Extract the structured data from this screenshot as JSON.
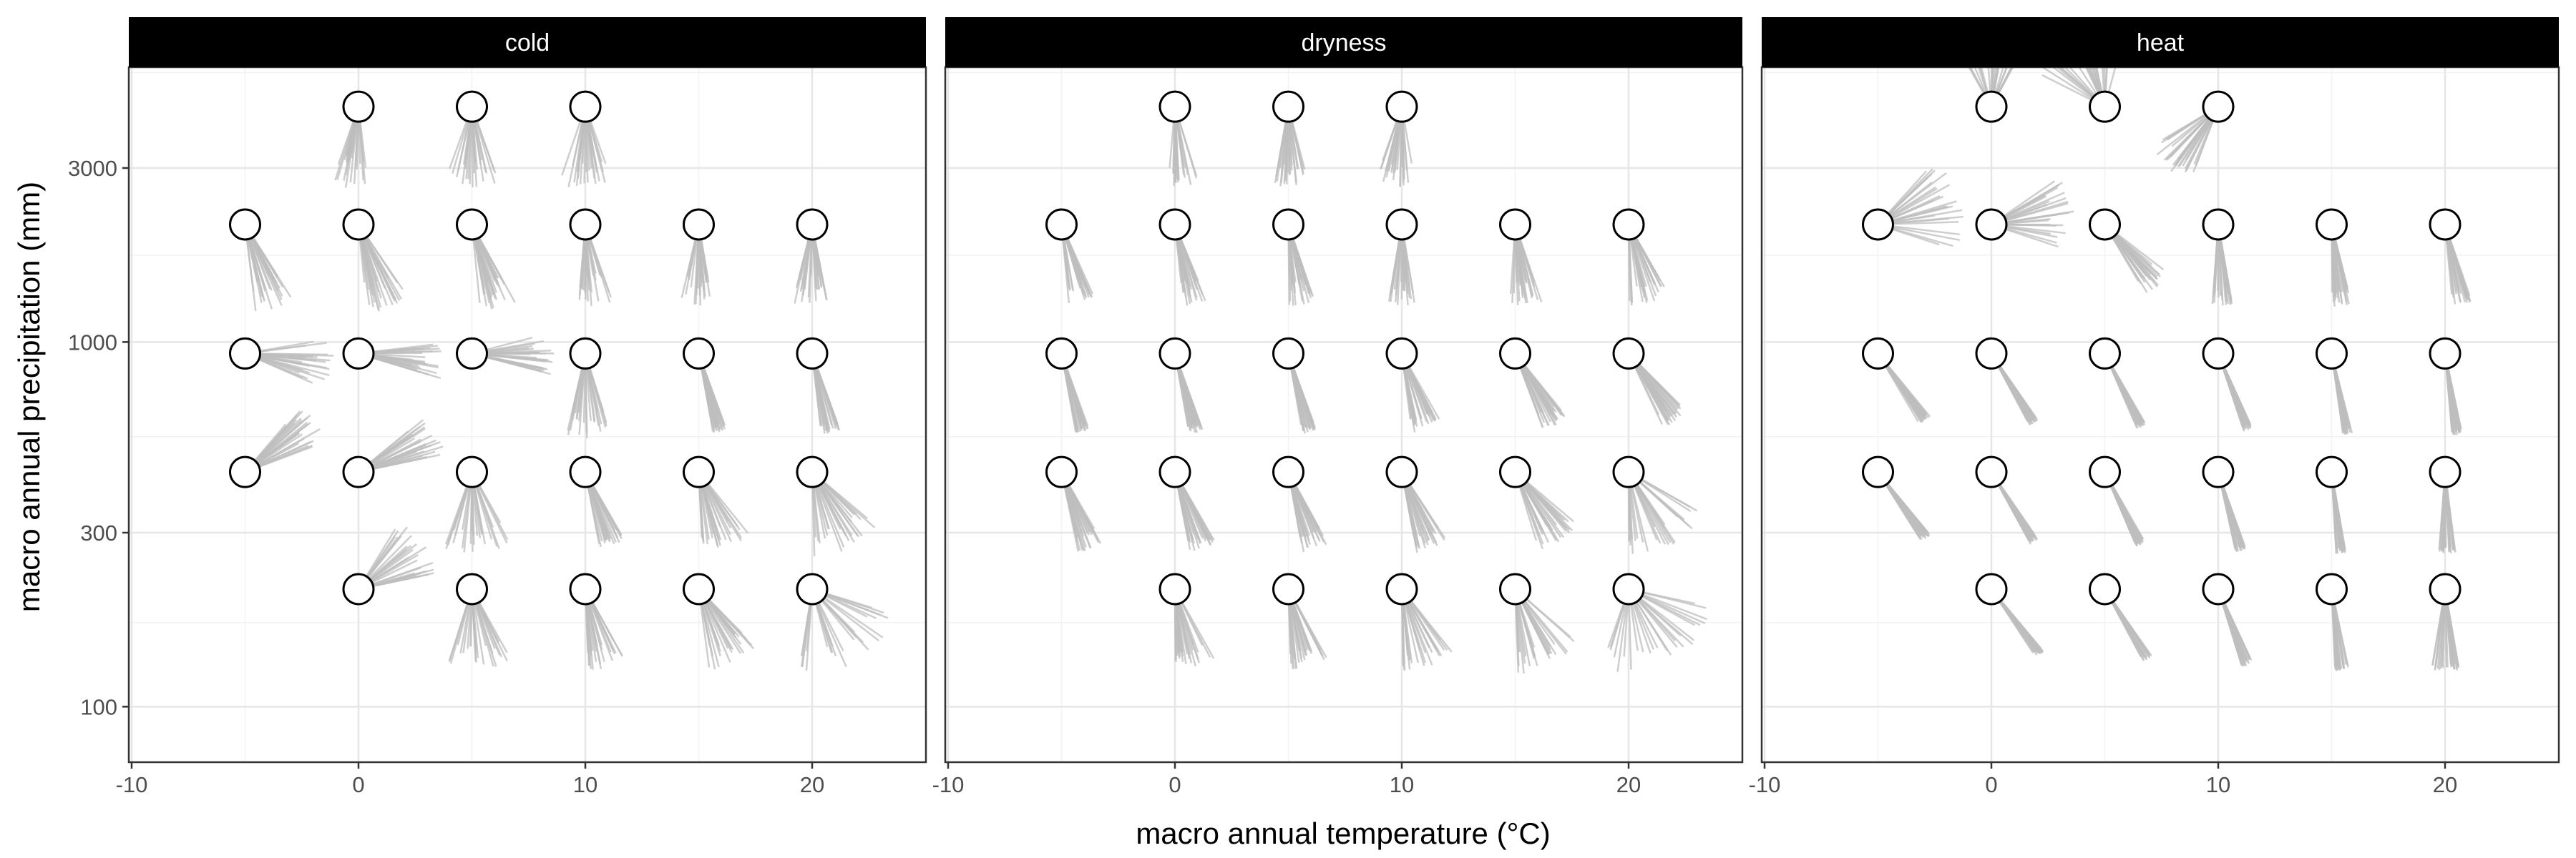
{
  "chart_data": {
    "type": "scatter",
    "facets": [
      {
        "name": "cold",
        "bg_count": 24
      },
      {
        "name": "dryness",
        "bg_count": 28
      },
      {
        "name": "heat",
        "bg_count": 28
      }
    ],
    "xlabel": "macro annual temperature (°C)",
    "ylabel": "macro annual precipitation (mm)",
    "xlim": [
      -10,
      24
    ],
    "ylim_log10": [
      100,
      8000
    ],
    "y_scale": "log10",
    "x_ticks": [
      -10,
      0,
      10,
      20
    ],
    "x_tick_labels": [
      "-10",
      "0",
      "10",
      "20"
    ],
    "y_ticks": [
      100,
      300,
      1000,
      3000
    ],
    "y_tick_labels": [
      "100",
      "300",
      "1000",
      "3000"
    ],
    "point_style": {
      "stroke": "#000000",
      "fill": "#ffffff"
    },
    "line_color": "#bdbdbd",
    "grid": true,
    "panels": [
      {
        "facet": "cold",
        "points": [
          {
            "x": 0,
            "y": 4420,
            "angles": [
              170,
              200
            ],
            "length": [
              60,
              115
            ]
          },
          {
            "x": 5,
            "y": 4420,
            "angles": [
              160,
              200
            ],
            "length": [
              70,
              115
            ]
          },
          {
            "x": 10,
            "y": 4420,
            "angles": [
              160,
              200
            ],
            "length": [
              70,
              115
            ]
          },
          {
            "x": -5,
            "y": 2100,
            "angles": [
              145,
              175
            ],
            "length": [
              80,
              125
            ]
          },
          {
            "x": 0,
            "y": 2100,
            "angles": [
              145,
              175
            ],
            "length": [
              80,
              125
            ]
          },
          {
            "x": 5,
            "y": 2100,
            "angles": [
              150,
              175
            ],
            "length": [
              80,
              125
            ]
          },
          {
            "x": 10,
            "y": 2100,
            "angles": [
              160,
              185
            ],
            "length": [
              70,
              115
            ]
          },
          {
            "x": 15,
            "y": 2100,
            "angles": [
              170,
              195
            ],
            "length": [
              70,
              115
            ]
          },
          {
            "x": 20,
            "y": 2100,
            "angles": [
              165,
              195
            ],
            "length": [
              70,
              115
            ]
          },
          {
            "x": -5,
            "y": 930,
            "angles": [
              80,
              115
            ],
            "length": [
              80,
              125
            ]
          },
          {
            "x": 0,
            "y": 930,
            "angles": [
              80,
              110
            ],
            "length": [
              75,
              120
            ]
          },
          {
            "x": 5,
            "y": 930,
            "angles": [
              75,
              105
            ],
            "length": [
              75,
              115
            ]
          },
          {
            "x": 10,
            "y": 930,
            "angles": [
              160,
              195
            ],
            "length": [
              80,
              120
            ]
          },
          {
            "x": 15,
            "y": 930,
            "angles": [
              160,
              170
            ],
            "length": [
              100,
              115
            ]
          },
          {
            "x": 20,
            "y": 930,
            "angles": [
              160,
              175
            ],
            "length": [
              100,
              115
            ]
          },
          {
            "x": -5,
            "y": 440,
            "angles": [
              40,
              70
            ],
            "length": [
              85,
              125
            ]
          },
          {
            "x": 0,
            "y": 440,
            "angles": [
              50,
              80
            ],
            "length": [
              85,
              125
            ]
          },
          {
            "x": 5,
            "y": 440,
            "angles": [
              150,
              200
            ],
            "length": [
              80,
              115
            ]
          },
          {
            "x": 10,
            "y": 440,
            "angles": [
              150,
              170
            ],
            "length": [
              90,
              110
            ]
          },
          {
            "x": 15,
            "y": 440,
            "angles": [
              140,
              180
            ],
            "length": [
              80,
              115
            ]
          },
          {
            "x": 20,
            "y": 440,
            "angles": [
              130,
              180
            ],
            "length": [
              80,
              120
            ]
          },
          {
            "x": 0,
            "y": 210,
            "angles": [
              30,
              80
            ],
            "length": [
              80,
              115
            ]
          },
          {
            "x": 5,
            "y": 210,
            "angles": [
              150,
              200
            ],
            "length": [
              80,
              115
            ]
          },
          {
            "x": 10,
            "y": 210,
            "angles": [
              150,
              180
            ],
            "length": [
              80,
              115
            ]
          },
          {
            "x": 15,
            "y": 210,
            "angles": [
              135,
              175
            ],
            "length": [
              80,
              115
            ]
          },
          {
            "x": 20,
            "y": 210,
            "angles": [
              100,
              190
            ],
            "length": [
              80,
              120
            ]
          }
        ]
      },
      {
        "facet": "dryness",
        "points": [
          {
            "x": 0,
            "y": 4420,
            "angles": [
              160,
              185
            ],
            "length": [
              80,
              115
            ]
          },
          {
            "x": 5,
            "y": 4420,
            "angles": [
              165,
              190
            ],
            "length": [
              80,
              115
            ]
          },
          {
            "x": 10,
            "y": 4420,
            "angles": [
              170,
              200
            ],
            "length": [
              80,
              115
            ]
          },
          {
            "x": -5,
            "y": 2100,
            "angles": [
              155,
              175
            ],
            "length": [
              80,
              115
            ]
          },
          {
            "x": 0,
            "y": 2100,
            "angles": [
              155,
              175
            ],
            "length": [
              80,
              115
            ]
          },
          {
            "x": 5,
            "y": 2100,
            "angles": [
              160,
              180
            ],
            "length": [
              80,
              115
            ]
          },
          {
            "x": 10,
            "y": 2100,
            "angles": [
              170,
              190
            ],
            "length": [
              80,
              115
            ]
          },
          {
            "x": 15,
            "y": 2100,
            "angles": [
              160,
              185
            ],
            "length": [
              80,
              115
            ]
          },
          {
            "x": 20,
            "y": 2100,
            "angles": [
              150,
              180
            ],
            "length": [
              80,
              115
            ]
          },
          {
            "x": -5,
            "y": 930,
            "angles": [
              160,
              170
            ],
            "length": [
              100,
              115
            ]
          },
          {
            "x": 0,
            "y": 930,
            "angles": [
              160,
              170
            ],
            "length": [
              100,
              115
            ]
          },
          {
            "x": 5,
            "y": 930,
            "angles": [
              160,
              170
            ],
            "length": [
              100,
              115
            ]
          },
          {
            "x": 10,
            "y": 930,
            "angles": [
              150,
              175
            ],
            "length": [
              90,
              115
            ]
          },
          {
            "x": 15,
            "y": 930,
            "angles": [
              140,
              160
            ],
            "length": [
              90,
              115
            ]
          },
          {
            "x": 20,
            "y": 930,
            "angles": [
              135,
              155
            ],
            "length": [
              90,
              115
            ]
          },
          {
            "x": -5,
            "y": 440,
            "angles": [
              150,
              170
            ],
            "length": [
              90,
              115
            ]
          },
          {
            "x": 0,
            "y": 440,
            "angles": [
              150,
              170
            ],
            "length": [
              90,
              115
            ]
          },
          {
            "x": 5,
            "y": 440,
            "angles": [
              150,
              170
            ],
            "length": [
              90,
              115
            ]
          },
          {
            "x": 10,
            "y": 440,
            "angles": [
              145,
              170
            ],
            "length": [
              90,
              115
            ]
          },
          {
            "x": 15,
            "y": 440,
            "angles": [
              130,
              165
            ],
            "length": [
              85,
              115
            ]
          },
          {
            "x": 20,
            "y": 440,
            "angles": [
              115,
              180
            ],
            "length": [
              85,
              120
            ]
          },
          {
            "x": 0,
            "y": 210,
            "angles": [
              150,
              180
            ],
            "length": [
              85,
              115
            ]
          },
          {
            "x": 5,
            "y": 210,
            "angles": [
              150,
              180
            ],
            "length": [
              85,
              115
            ]
          },
          {
            "x": 10,
            "y": 210,
            "angles": [
              140,
              180
            ],
            "length": [
              85,
              115
            ]
          },
          {
            "x": 15,
            "y": 210,
            "angles": [
              130,
              180
            ],
            "length": [
              85,
              120
            ]
          },
          {
            "x": 20,
            "y": 210,
            "angles": [
              100,
              200
            ],
            "length": [
              85,
              120
            ]
          }
        ]
      },
      {
        "facet": "heat",
        "points": [
          {
            "x": 0,
            "y": 4420,
            "angles": [
              -30,
              30
            ],
            "length": [
              80,
              120
            ]
          },
          {
            "x": 5,
            "y": 4420,
            "angles": [
              -70,
              15
            ],
            "length": [
              80,
              120
            ]
          },
          {
            "x": 10,
            "y": 4420,
            "angles": [
              200,
              240
            ],
            "length": [
              85,
              115
            ]
          },
          {
            "x": -5,
            "y": 2100,
            "angles": [
              40,
              110
            ],
            "length": [
              80,
              120
            ]
          },
          {
            "x": 0,
            "y": 2100,
            "angles": [
              50,
              110
            ],
            "length": [
              80,
              120
            ]
          },
          {
            "x": 5,
            "y": 2100,
            "angles": [
              125,
              150
            ],
            "length": [
              80,
              115
            ]
          },
          {
            "x": 10,
            "y": 2100,
            "angles": [
              170,
              185
            ],
            "length": [
              90,
              115
            ]
          },
          {
            "x": 15,
            "y": 2100,
            "angles": [
              165,
              180
            ],
            "length": [
              90,
              115
            ]
          },
          {
            "x": 20,
            "y": 2100,
            "angles": [
              160,
              175
            ],
            "length": [
              90,
              115
            ]
          },
          {
            "x": -5,
            "y": 930,
            "angles": [
              140,
              150
            ],
            "length": [
              105,
              115
            ]
          },
          {
            "x": 0,
            "y": 930,
            "angles": [
              145,
              152
            ],
            "length": [
              105,
              115
            ]
          },
          {
            "x": 5,
            "y": 930,
            "angles": [
              150,
              157
            ],
            "length": [
              105,
              115
            ]
          },
          {
            "x": 10,
            "y": 930,
            "angles": [
              155,
              162
            ],
            "length": [
              105,
              115
            ]
          },
          {
            "x": 15,
            "y": 930,
            "angles": [
              165,
              172
            ],
            "length": [
              105,
              115
            ]
          },
          {
            "x": 20,
            "y": 930,
            "angles": [
              168,
              175
            ],
            "length": [
              105,
              115
            ]
          },
          {
            "x": -5,
            "y": 440,
            "angles": [
              140,
              148
            ],
            "length": [
              105,
              115
            ]
          },
          {
            "x": 0,
            "y": 440,
            "angles": [
              145,
              152
            ],
            "length": [
              105,
              115
            ]
          },
          {
            "x": 5,
            "y": 440,
            "angles": [
              150,
              157
            ],
            "length": [
              105,
              115
            ]
          },
          {
            "x": 10,
            "y": 440,
            "angles": [
              160,
              168
            ],
            "length": [
              105,
              115
            ]
          },
          {
            "x": 15,
            "y": 440,
            "angles": [
              170,
              177
            ],
            "length": [
              105,
              115
            ]
          },
          {
            "x": 20,
            "y": 440,
            "angles": [
              172,
              185
            ],
            "length": [
              105,
              115
            ]
          },
          {
            "x": 0,
            "y": 210,
            "angles": [
              140,
              147
            ],
            "length": [
              105,
              115
            ]
          },
          {
            "x": 5,
            "y": 210,
            "angles": [
              145,
              152
            ],
            "length": [
              105,
              115
            ]
          },
          {
            "x": 10,
            "y": 210,
            "angles": [
              155,
              163
            ],
            "length": [
              105,
              115
            ]
          },
          {
            "x": 15,
            "y": 210,
            "angles": [
              168,
              178
            ],
            "length": [
              105,
              115
            ]
          },
          {
            "x": 20,
            "y": 210,
            "angles": [
              170,
              190
            ],
            "length": [
              105,
              115
            ]
          }
        ]
      }
    ]
  }
}
